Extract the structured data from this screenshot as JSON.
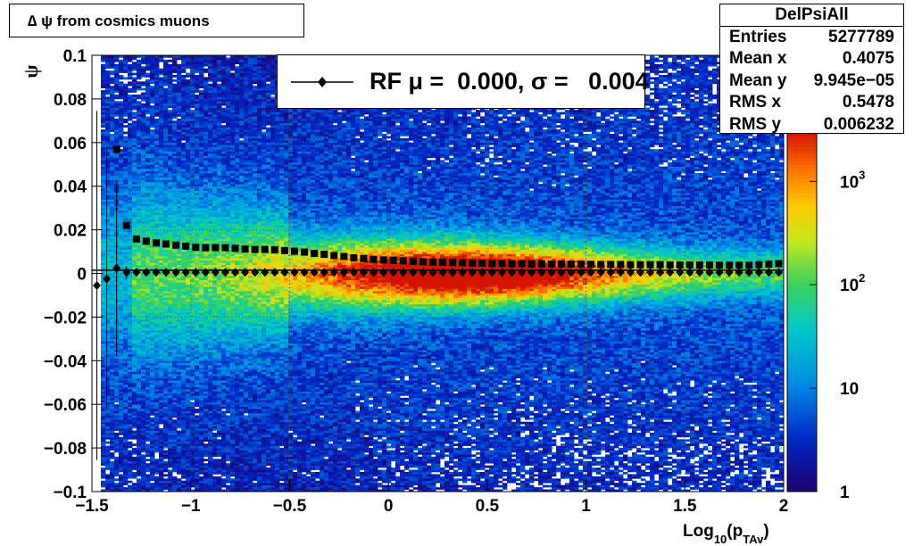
{
  "title": "∆ ψ from cosmics muons",
  "stats": {
    "name": "DelPsiAll",
    "rows": [
      {
        "label": "Entries",
        "value": "5277789"
      },
      {
        "label": "Mean x",
        "value": "0.4075"
      },
      {
        "label": "Mean y",
        "value": "9.945e−05"
      },
      {
        "label": "RMS x",
        "value": "0.5478"
      },
      {
        "label": "RMS y",
        "value": "0.006232"
      }
    ]
  },
  "legend": {
    "text": "RF μ =  0.000, σ =   0.004"
  },
  "chart_data": {
    "type": "heatmap",
    "xlabel": "Log10(pTAv)",
    "ylabel": "ψ",
    "xlim": [
      -1.5,
      2
    ],
    "ylim": [
      -0.1,
      0.1
    ],
    "x_ticks": [
      "−1.5",
      "−1",
      "−0.5",
      "0",
      "0.5",
      "1",
      "1.5",
      "2"
    ],
    "x_tick_values": [
      -1.5,
      -1,
      -0.5,
      0,
      0.5,
      1,
      1.5,
      2
    ],
    "y_ticks": [
      "−0.1",
      "−0.08",
      "−0.06",
      "−0.04",
      "−0.02",
      "0",
      "0.02",
      "0.04",
      "0.06",
      "0.08",
      "0.1"
    ],
    "y_tick_values": [
      -0.1,
      -0.08,
      -0.06,
      -0.04,
      -0.02,
      0,
      0.02,
      0.04,
      0.06,
      0.08,
      0.1
    ],
    "grid": true,
    "colorbar": {
      "scale": "log",
      "range": [
        1,
        3000
      ],
      "labels": [
        "1",
        "10",
        "10^2",
        "10^3"
      ],
      "label_values": [
        1,
        10,
        100,
        1000
      ]
    },
    "series": [
      {
        "marker": "diamond",
        "x": [
          -1.475,
          -1.425,
          -1.375,
          -1.325,
          -1.275,
          -1.225,
          -1.175,
          -1.125,
          -1.075,
          -1.025,
          -0.975,
          -0.925,
          -0.875,
          -0.825,
          -0.775,
          -0.725,
          -0.675,
          -0.625,
          -0.575,
          -0.525,
          -0.475,
          -0.425,
          -0.375,
          -0.325,
          -0.275,
          -0.225,
          -0.175,
          -0.125,
          -0.075,
          -0.025,
          0.025,
          0.075,
          0.125,
          0.175,
          0.225,
          0.275,
          0.325,
          0.375,
          0.425,
          0.475,
          0.525,
          0.575,
          0.625,
          0.675,
          0.725,
          0.775,
          0.825,
          0.875,
          0.925,
          0.975,
          1.025,
          1.075,
          1.125,
          1.175,
          1.225,
          1.275,
          1.325,
          1.375,
          1.425,
          1.475,
          1.525,
          1.575,
          1.625,
          1.675,
          1.725,
          1.775,
          1.825,
          1.875,
          1.925,
          1.975
        ],
        "y": [
          -0.0055,
          -0.0025,
          0.0025,
          0.0005,
          0.0005,
          0.0005,
          0.0005,
          0.0005,
          0.0005,
          0.0005,
          0.0005,
          0.0005,
          0.0005,
          0.0005,
          0.0005,
          0.0005,
          0.0005,
          0.0005,
          0.0005,
          0.0005,
          0.0005,
          0.0005,
          0.0005,
          0.0005,
          0.0005,
          0.0005,
          0.0005,
          0.0005,
          0.0005,
          0.0005,
          0.0005,
          0.0005,
          0.0005,
          0.0005,
          0.0005,
          0.0005,
          0.0005,
          0.0005,
          0.0005,
          0.0005,
          0.0005,
          0.0005,
          0.0005,
          0.0005,
          0.0005,
          0.0005,
          0.0005,
          0.0005,
          0.0005,
          0.0005,
          0.0005,
          0.0005,
          0.0005,
          0.0005,
          0.0005,
          0.0005,
          0.0005,
          0.0005,
          0.0005,
          0.0005,
          0.0005,
          0.0005,
          0.0005,
          0.0005,
          0.0005,
          0.0005,
          0.0005,
          0.0005,
          0.0005,
          0.0005
        ],
        "yerr": [
          0.08,
          0.06,
          0.04,
          0.003,
          0.001,
          0.001,
          0.001,
          0.001,
          0.001,
          0.001,
          0.001,
          0.001,
          0.001,
          0.001,
          0.001,
          0.001,
          0.001,
          0.001,
          0.001,
          0.001,
          0.001,
          0.001,
          0.001,
          0.001,
          0.001,
          0.001,
          0.001,
          0.001,
          0.001,
          0.001,
          0.001,
          0.001,
          0.001,
          0.001,
          0.001,
          0.001,
          0.001,
          0.001,
          0.001,
          0.001,
          0.001,
          0.001,
          0.001,
          0.001,
          0.001,
          0.001,
          0.001,
          0.001,
          0.001,
          0.001,
          0.001,
          0.001,
          0.001,
          0.001,
          0.001,
          0.001,
          0.001,
          0.001,
          0.001,
          0.001,
          0.001,
          0.001,
          0.001,
          0.001,
          0.001,
          0.001,
          0.001,
          0.001,
          0.001,
          0.001
        ]
      },
      {
        "marker": "square",
        "x": [
          -1.375,
          -1.325,
          -1.275,
          -1.225,
          -1.175,
          -1.125,
          -1.075,
          -1.025,
          -0.975,
          -0.925,
          -0.875,
          -0.825,
          -0.775,
          -0.725,
          -0.675,
          -0.625,
          -0.575,
          -0.525,
          -0.475,
          -0.425,
          -0.375,
          -0.325,
          -0.275,
          -0.225,
          -0.175,
          -0.125,
          -0.075,
          -0.025,
          0.025,
          0.075,
          0.125,
          0.175,
          0.225,
          0.275,
          0.325,
          0.375,
          0.425,
          0.475,
          0.525,
          0.575,
          0.625,
          0.675,
          0.725,
          0.775,
          0.825,
          0.875,
          0.925,
          0.975,
          1.025,
          1.075,
          1.125,
          1.175,
          1.225,
          1.275,
          1.325,
          1.375,
          1.425,
          1.475,
          1.525,
          1.575,
          1.625,
          1.675,
          1.725,
          1.775,
          1.825,
          1.875,
          1.925,
          1.975
        ],
        "y": [
          0.057,
          0.022,
          0.0158,
          0.0148,
          0.014,
          0.0135,
          0.013,
          0.0125,
          0.012,
          0.0118,
          0.0118,
          0.0118,
          0.0115,
          0.0112,
          0.011,
          0.011,
          0.0108,
          0.0105,
          0.0102,
          0.0098,
          0.0092,
          0.0088,
          0.0082,
          0.0078,
          0.0072,
          0.0068,
          0.0065,
          0.0062,
          0.006,
          0.0058,
          0.0056,
          0.0054,
          0.0052,
          0.0051,
          0.005,
          0.0049,
          0.0048,
          0.0047,
          0.0046,
          0.0046,
          0.0045,
          0.0045,
          0.0044,
          0.0044,
          0.0043,
          0.0043,
          0.0042,
          0.0042,
          0.0042,
          0.0041,
          0.0041,
          0.0041,
          0.004,
          0.004,
          0.004,
          0.004,
          0.0039,
          0.0039,
          0.0039,
          0.0039,
          0.0039,
          0.0038,
          0.0038,
          0.0038,
          0.0038,
          0.004,
          0.0042,
          0.0045
        ]
      }
    ]
  }
}
